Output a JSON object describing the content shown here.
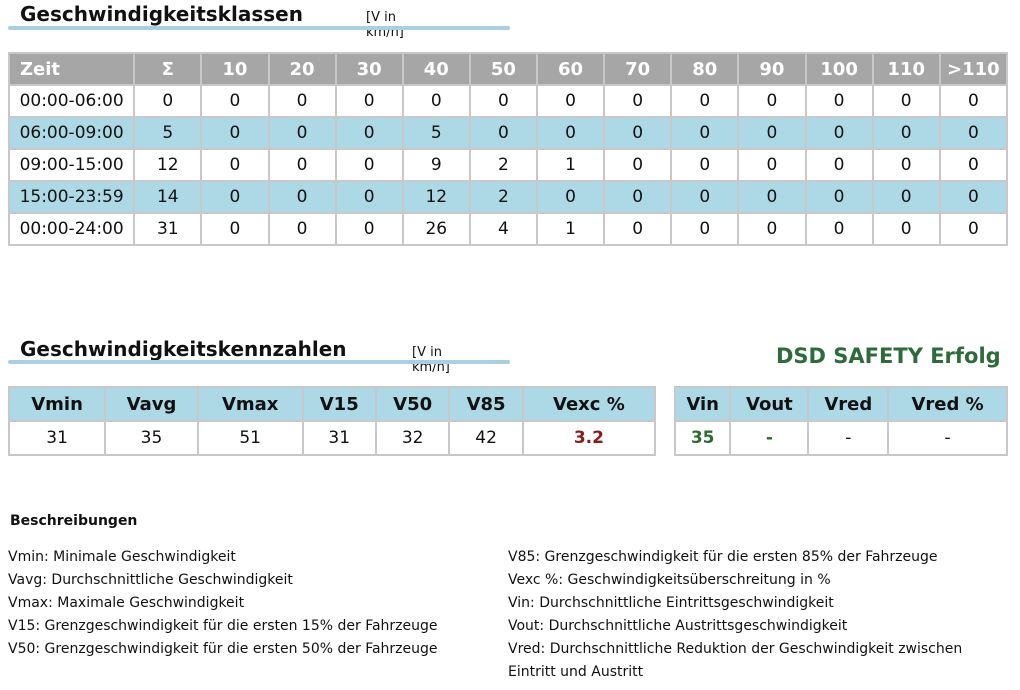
{
  "speed_classes": {
    "title": "Geschwindigkeitsklassen",
    "unit": "[V in km/h]",
    "headers": [
      "Zeit",
      "Σ",
      "10",
      "20",
      "30",
      "40",
      "50",
      "60",
      "70",
      "80",
      "90",
      "100",
      "110",
      ">110"
    ],
    "rows": [
      [
        "00:00-06:00",
        "0",
        "0",
        "0",
        "0",
        "0",
        "0",
        "0",
        "0",
        "0",
        "0",
        "0",
        "0",
        "0"
      ],
      [
        "06:00-09:00",
        "5",
        "0",
        "0",
        "0",
        "5",
        "0",
        "0",
        "0",
        "0",
        "0",
        "0",
        "0",
        "0"
      ],
      [
        "09:00-15:00",
        "12",
        "0",
        "0",
        "0",
        "9",
        "2",
        "1",
        "0",
        "0",
        "0",
        "0",
        "0",
        "0"
      ],
      [
        "15:00-23:59",
        "14",
        "0",
        "0",
        "0",
        "12",
        "2",
        "0",
        "0",
        "0",
        "0",
        "0",
        "0",
        "0"
      ],
      [
        "00:00-24:00",
        "31",
        "0",
        "0",
        "0",
        "26",
        "4",
        "1",
        "0",
        "0",
        "0",
        "0",
        "0",
        "0"
      ]
    ]
  },
  "key_figures": {
    "title": "Geschwindigkeitskennzahlen",
    "unit": "[V in km/h]",
    "headers": [
      "Vmin",
      "Vavg",
      "Vmax",
      "V15",
      "V50",
      "V85",
      "Vexc %"
    ],
    "values": [
      "31",
      "35",
      "51",
      "31",
      "32",
      "42",
      "3.2"
    ]
  },
  "dsd_safety": {
    "label": "DSD SAFETY Erfolg",
    "headers": [
      "Vin",
      "Vout",
      "Vred",
      "Vred %"
    ],
    "values": [
      "35",
      "-",
      "-",
      "-"
    ]
  },
  "descriptions": {
    "heading": "Beschreibungen",
    "left": [
      "Vmin: Minimale Geschwindigkeit",
      "Vavg: Durchschnittliche Geschwindigkeit",
      "Vmax: Maximale Geschwindigkeit",
      "V15: Grenzgeschwindigkeit für die ersten 15% der Fahrzeuge",
      "V50: Grenzgeschwindigkeit für die ersten 50% der Fahrzeuge"
    ],
    "right": [
      "V85: Grenzgeschwindigkeit für die ersten 85% der Fahrzeuge",
      "Vexc %: Geschwindigkeitsüberschreitung in %",
      "Vin: Durchschnittliche Eintrittsgeschwindigkeit",
      "Vout: Durchschnittliche Austrittsgeschwindigkeit",
      "Vred: Durchschnittliche Reduktion der Geschwindigkeit zwischen Eintritt und Austritt"
    ]
  },
  "colors": {
    "header_gray": "#a6a6a6",
    "row_blue": "#add8e6",
    "accent_red": "#8b1a1a",
    "accent_green": "#2e6b2e"
  }
}
